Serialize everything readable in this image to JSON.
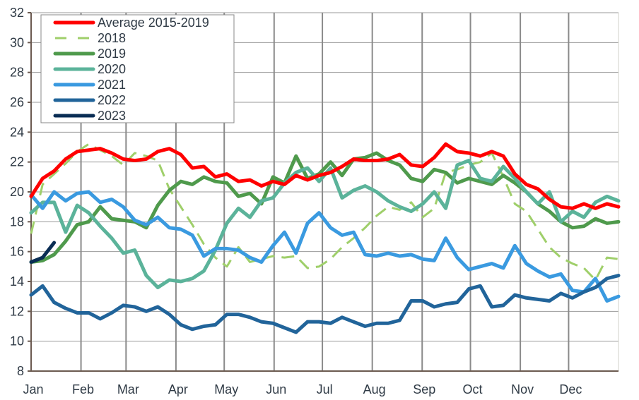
{
  "chart_data": {
    "type": "line",
    "title": "",
    "xlabel": "",
    "ylabel": "",
    "ylim": [
      8,
      32
    ],
    "yticks": [
      8,
      10,
      12,
      14,
      16,
      18,
      20,
      22,
      24,
      26,
      28,
      30,
      32
    ],
    "x_categories": [
      "Jan",
      "Feb",
      "Mar",
      "Apr",
      "May",
      "Jun",
      "Jul",
      "Aug",
      "Sep",
      "Oct",
      "Nov",
      "Dec"
    ],
    "x_unit": "week of year",
    "xlim": [
      1,
      52
    ],
    "grid": true,
    "legend_position": "top-left",
    "series": [
      {
        "name": "Average 2015-2019",
        "color": "#ff0000",
        "style": "solid",
        "values": [
          19.7,
          20.9,
          21.4,
          22.2,
          22.7,
          22.8,
          22.9,
          22.6,
          22.2,
          22.1,
          22.2,
          22.7,
          22.9,
          22.5,
          21.6,
          21.7,
          21.0,
          21.2,
          20.7,
          20.8,
          20.4,
          20.7,
          20.5,
          21.1,
          20.8,
          21.1,
          21.3,
          21.7,
          22.2,
          22.1,
          22.1,
          22.2,
          22.5,
          21.8,
          21.7,
          22.3,
          23.2,
          22.7,
          22.6,
          22.4,
          22.7,
          22.4,
          21.2,
          20.5,
          20.2,
          19.5,
          19.0,
          18.9,
          19.2,
          18.9,
          19.2,
          19.0
        ]
      },
      {
        "name": "2018",
        "color": "#9fcf6a",
        "style": "dashed",
        "values": [
          17.2,
          20.5,
          21.2,
          21.9,
          22.7,
          23.2,
          22.8,
          22.4,
          21.8,
          22.6,
          22.4,
          22.1,
          20.2,
          19.0,
          17.8,
          16.5,
          15.6,
          15.0,
          16.3,
          15.3,
          15.5,
          15.7,
          15.6,
          15.7,
          14.9,
          15.0,
          15.5,
          16.3,
          16.9,
          17.6,
          18.4,
          19.0,
          18.8,
          19.3,
          18.3,
          18.9,
          21.3,
          21.5,
          21.8,
          22.0,
          22.6,
          21.0,
          19.2,
          18.7,
          17.5,
          16.3,
          15.6,
          15.2,
          14.9,
          14.1,
          15.6,
          15.5
        ]
      },
      {
        "name": "2019",
        "color": "#4f9a4c",
        "style": "solid",
        "values": [
          15.3,
          15.4,
          15.8,
          16.7,
          17.8,
          18.0,
          19.0,
          18.2,
          18.1,
          18.0,
          17.6,
          19.1,
          20.1,
          20.7,
          20.5,
          21.0,
          20.7,
          20.6,
          19.7,
          19.9,
          19.2,
          21.0,
          20.6,
          22.4,
          20.9,
          21.2,
          22.0,
          21.1,
          22.2,
          22.3,
          22.6,
          22.1,
          21.8,
          20.9,
          20.7,
          21.5,
          21.3,
          20.6,
          20.9,
          20.7,
          20.5,
          21.1,
          20.6,
          20.0,
          19.2,
          18.7,
          18.0,
          17.6,
          17.7,
          18.2,
          17.9,
          18.0
        ]
      },
      {
        "name": "2020",
        "color": "#5bb39a",
        "style": "solid",
        "values": [
          18.6,
          19.3,
          19.3,
          17.3,
          19.1,
          18.6,
          17.7,
          16.9,
          15.9,
          16.1,
          14.4,
          13.6,
          14.1,
          14.0,
          14.2,
          14.7,
          16.1,
          17.9,
          18.9,
          18.3,
          19.4,
          19.6,
          20.6,
          21.3,
          21.6,
          20.7,
          21.6,
          19.6,
          20.1,
          20.4,
          20.0,
          19.4,
          19.0,
          18.7,
          19.2,
          20.0,
          18.9,
          21.8,
          22.1,
          20.9,
          20.7,
          21.7,
          20.9,
          20.0,
          19.2,
          20.0,
          18.0,
          18.7,
          18.3,
          19.3,
          19.7,
          19.4
        ]
      },
      {
        "name": "2021",
        "color": "#3a9ae0",
        "style": "solid",
        "values": [
          19.8,
          18.9,
          20.0,
          19.4,
          19.9,
          20.0,
          19.3,
          19.5,
          19.0,
          18.1,
          17.8,
          18.3,
          17.6,
          17.5,
          17.1,
          15.7,
          16.2,
          16.2,
          16.1,
          15.6,
          15.3,
          16.4,
          17.3,
          15.9,
          17.9,
          18.6,
          17.6,
          17.1,
          17.3,
          15.8,
          15.7,
          15.9,
          15.7,
          15.8,
          15.5,
          15.4,
          16.9,
          15.6,
          14.8,
          15.0,
          15.2,
          14.9,
          16.4,
          15.2,
          14.7,
          14.3,
          14.5,
          13.4,
          13.3,
          14.2,
          12.7,
          13.0
        ]
      },
      {
        "name": "2022",
        "color": "#21649a",
        "style": "solid",
        "values": [
          13.1,
          13.7,
          12.6,
          12.2,
          11.9,
          11.9,
          11.5,
          11.9,
          12.4,
          12.3,
          12.0,
          12.3,
          11.8,
          11.1,
          10.8,
          11.0,
          11.1,
          11.8,
          11.8,
          11.6,
          11.3,
          11.2,
          10.9,
          10.6,
          11.3,
          11.3,
          11.2,
          11.6,
          11.3,
          11.0,
          11.2,
          11.2,
          11.4,
          12.7,
          12.7,
          12.3,
          12.5,
          12.6,
          13.5,
          13.7,
          12.3,
          12.4,
          13.1,
          12.9,
          12.8,
          12.7,
          13.2,
          12.9,
          13.3,
          13.6,
          14.2,
          14.4
        ]
      },
      {
        "name": "2023",
        "color": "#0a2d54",
        "style": "solid",
        "values": [
          15.3,
          15.6,
          16.6
        ]
      }
    ]
  }
}
